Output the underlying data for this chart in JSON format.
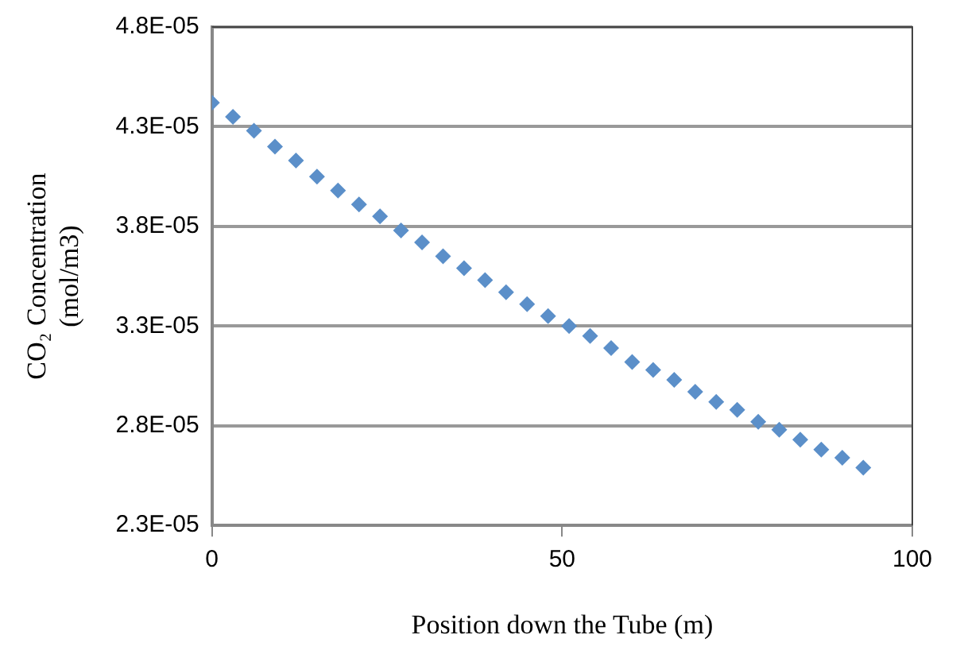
{
  "chart_data": {
    "type": "scatter",
    "xlabel": "Position down the Tube (m)",
    "ylabel": "CO₂ Concentration\n(mol/m3)",
    "x": [
      0,
      3,
      6,
      9,
      12,
      15,
      18,
      21,
      24,
      27,
      30,
      33,
      36,
      39,
      42,
      45,
      48,
      51,
      54,
      57,
      60,
      63,
      66,
      69,
      72,
      75,
      78,
      81,
      84,
      87,
      90,
      93
    ],
    "series": [
      {
        "color": "#5b8fc9",
        "values": [
          4.42e-05,
          4.35e-05,
          4.28e-05,
          4.2e-05,
          4.13e-05,
          4.05e-05,
          3.98e-05,
          3.91e-05,
          3.85e-05,
          3.78e-05,
          3.72e-05,
          3.65e-05,
          3.59e-05,
          3.53e-05,
          3.47e-05,
          3.41e-05,
          3.35e-05,
          3.3e-05,
          3.25e-05,
          3.19e-05,
          3.12e-05,
          3.08e-05,
          3.03e-05,
          2.97e-05,
          2.92e-05,
          2.88e-05,
          2.82e-05,
          2.78e-05,
          2.73e-05,
          2.68e-05,
          2.64e-05,
          2.59e-05
        ]
      }
    ],
    "xlim": [
      0,
      100
    ],
    "xticks": [
      0,
      50,
      100
    ],
    "ylim": [
      2.3e-05,
      4.8e-05
    ],
    "yticks": [
      {
        "value": 2.3e-05,
        "label": "2.3E-05"
      },
      {
        "value": 2.8e-05,
        "label": "2.8E-05"
      },
      {
        "value": 3.3e-05,
        "label": "3.3E-05"
      },
      {
        "value": 3.8e-05,
        "label": "3.8E-05"
      },
      {
        "value": 4.3e-05,
        "label": "4.3E-05"
      },
      {
        "value": 4.8e-05,
        "label": "4.8E-05"
      }
    ],
    "grid": "y",
    "marker": "diamond",
    "legend": false
  }
}
